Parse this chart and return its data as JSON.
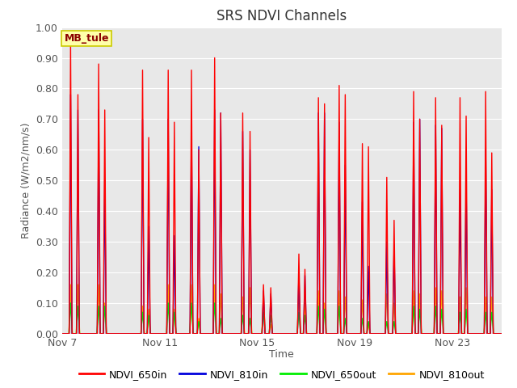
{
  "title": "SRS NDVI Channels",
  "xlabel": "Time",
  "ylabel": "Radiance (W/m2/nm/s)",
  "ylim": [
    0.0,
    1.0
  ],
  "annotation_text": "MB_tule",
  "annotation_bg": "#FFFFAA",
  "annotation_text_color": "#8B0000",
  "annotation_edge_color": "#CCCC00",
  "plot_bg": "#E8E8E8",
  "fig_bg": "#FFFFFF",
  "series": {
    "NDVI_650in": {
      "color": "#FF0000",
      "zorder": 4,
      "lw": 1.0
    },
    "NDVI_810in": {
      "color": "#0000DD",
      "zorder": 3,
      "lw": 1.0
    },
    "NDVI_650out": {
      "color": "#00EE00",
      "zorder": 2,
      "lw": 1.0
    },
    "NDVI_810out": {
      "color": "#FFA500",
      "zorder": 1,
      "lw": 1.0
    }
  },
  "xtick_labels": [
    "Nov 7",
    "Nov 11",
    "Nov 15",
    "Nov 19",
    "Nov 23"
  ],
  "xtick_positions": [
    0,
    4,
    8,
    12,
    16
  ],
  "num_days": 18,
  "yticks": [
    0.0,
    0.1,
    0.2,
    0.3,
    0.4,
    0.5,
    0.6,
    0.7,
    0.8,
    0.9,
    1.0
  ],
  "spike_events": [
    {
      "day": 0.35,
      "r": 0.95,
      "b": 0.78,
      "g": 0.1,
      "o": 0.16
    },
    {
      "day": 0.65,
      "r": 0.78,
      "b": 0.73,
      "g": 0.09,
      "o": 0.16
    },
    {
      "day": 1.5,
      "r": 0.88,
      "b": 0.73,
      "g": 0.09,
      "o": 0.16
    },
    {
      "day": 1.75,
      "r": 0.73,
      "b": 0.5,
      "g": 0.09,
      "o": 0.1
    },
    {
      "day": 3.3,
      "r": 0.86,
      "b": 0.7,
      "g": 0.07,
      "o": 0.09
    },
    {
      "day": 3.55,
      "r": 0.64,
      "b": 0.35,
      "g": 0.06,
      "o": 0.08
    },
    {
      "day": 4.35,
      "r": 0.86,
      "b": 0.7,
      "g": 0.1,
      "o": 0.16
    },
    {
      "day": 4.6,
      "r": 0.69,
      "b": 0.32,
      "g": 0.07,
      "o": 0.08
    },
    {
      "day": 5.3,
      "r": 0.86,
      "b": 0.69,
      "g": 0.1,
      "o": 0.16
    },
    {
      "day": 5.6,
      "r": 0.6,
      "b": 0.61,
      "g": 0.04,
      "o": 0.05
    },
    {
      "day": 6.25,
      "r": 0.9,
      "b": 0.73,
      "g": 0.1,
      "o": 0.16
    },
    {
      "day": 6.5,
      "r": 0.72,
      "b": 0.72,
      "g": 0.05,
      "o": 0.13
    },
    {
      "day": 7.4,
      "r": 0.72,
      "b": 0.66,
      "g": 0.06,
      "o": 0.12
    },
    {
      "day": 7.7,
      "r": 0.66,
      "b": 0.6,
      "g": 0.05,
      "o": 0.15
    },
    {
      "day": 8.25,
      "r": 0.16,
      "b": 0.14,
      "g": 0.07,
      "o": 0.12
    },
    {
      "day": 8.55,
      "r": 0.15,
      "b": 0.13,
      "g": 0.06,
      "o": 0.03
    },
    {
      "day": 9.7,
      "r": 0.26,
      "b": 0.2,
      "g": 0.07,
      "o": 0.13
    },
    {
      "day": 9.95,
      "r": 0.21,
      "b": 0.19,
      "g": 0.06,
      "o": 0.1
    },
    {
      "day": 10.5,
      "r": 0.77,
      "b": 0.72,
      "g": 0.09,
      "o": 0.14
    },
    {
      "day": 10.75,
      "r": 0.75,
      "b": 0.72,
      "g": 0.08,
      "o": 0.1
    },
    {
      "day": 11.35,
      "r": 0.81,
      "b": 0.69,
      "g": 0.09,
      "o": 0.14
    },
    {
      "day": 11.6,
      "r": 0.78,
      "b": 0.55,
      "g": 0.05,
      "o": 0.12
    },
    {
      "day": 12.3,
      "r": 0.62,
      "b": 0.43,
      "g": 0.05,
      "o": 0.11
    },
    {
      "day": 12.55,
      "r": 0.61,
      "b": 0.22,
      "g": 0.04,
      "o": 0.03
    },
    {
      "day": 13.3,
      "r": 0.51,
      "b": 0.3,
      "g": 0.04,
      "o": 0.13
    },
    {
      "day": 13.6,
      "r": 0.37,
      "b": 0.29,
      "g": 0.04,
      "o": 0.1
    },
    {
      "day": 14.4,
      "r": 0.79,
      "b": 0.69,
      "g": 0.09,
      "o": 0.14
    },
    {
      "day": 14.65,
      "r": 0.7,
      "b": 0.7,
      "g": 0.08,
      "o": 0.13
    },
    {
      "day": 15.3,
      "r": 0.77,
      "b": 0.68,
      "g": 0.09,
      "o": 0.15
    },
    {
      "day": 15.55,
      "r": 0.68,
      "b": 0.67,
      "g": 0.08,
      "o": 0.14
    },
    {
      "day": 16.3,
      "r": 0.77,
      "b": 0.47,
      "g": 0.07,
      "o": 0.12
    },
    {
      "day": 16.55,
      "r": 0.71,
      "b": 0.51,
      "g": 0.08,
      "o": 0.15
    },
    {
      "day": 17.35,
      "r": 0.79,
      "b": 0.6,
      "g": 0.07,
      "o": 0.12
    },
    {
      "day": 17.6,
      "r": 0.59,
      "b": 0.47,
      "g": 0.07,
      "o": 0.12
    }
  ]
}
